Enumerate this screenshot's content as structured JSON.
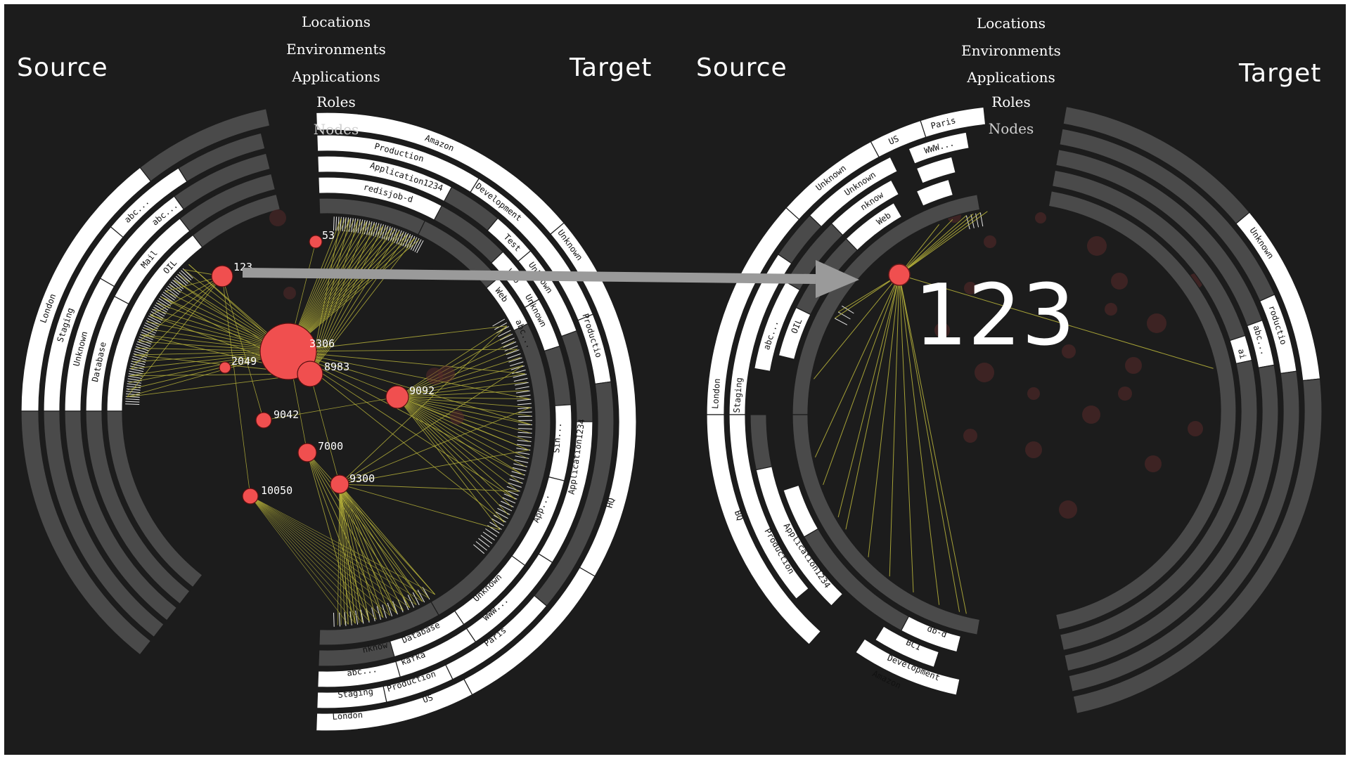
{
  "panels": [
    {
      "id": "left",
      "source_title": "Source",
      "target_title": "Target",
      "levels": [
        "Locations",
        "Environments",
        "Applications",
        "Roles",
        "Nodes"
      ],
      "source_labels": [
        {
          "text": "London",
          "ring": 0,
          "angle": -160
        },
        {
          "text": "Staging",
          "ring": 1,
          "angle": -162
        },
        {
          "text": "Unknown",
          "ring": 2,
          "angle": -166
        },
        {
          "text": "Database",
          "ring": 3,
          "angle": -168
        },
        {
          "text": "abc...",
          "ring": 2,
          "angle": -130
        },
        {
          "text": "abc...",
          "ring": 1,
          "angle": -134
        },
        {
          "text": "Mail",
          "ring": 3,
          "angle": -140
        },
        {
          "text": "OIL",
          "ring": 4,
          "angle": -138
        }
      ],
      "target_labels": [
        {
          "text": "Amazon",
          "ring": 0,
          "angle": -68
        },
        {
          "text": "Production",
          "ring": 1,
          "angle": -75
        },
        {
          "text": "Application1234",
          "ring": 2,
          "angle": -72
        },
        {
          "text": "redisjob-d",
          "ring": 3,
          "angle": -75
        },
        {
          "text": "Development",
          "ring": 1,
          "angle": -52
        },
        {
          "text": "Test",
          "ring": 2,
          "angle": -44
        },
        {
          "text": "Unknown",
          "ring": 0,
          "angle": -36
        },
        {
          "text": "Unknown",
          "ring": 2,
          "angle": -34
        },
        {
          "text": "Web",
          "ring": 3,
          "angle": -38
        },
        {
          "text": "Web",
          "ring": 4,
          "angle": -36
        },
        {
          "text": "Unknown",
          "ring": 3,
          "angle": -28
        },
        {
          "text": "abc...",
          "ring": 4,
          "angle": -24
        },
        {
          "text": "Productio",
          "ring": 1,
          "angle": -18
        },
        {
          "text": "Sin...",
          "ring": 3,
          "angle": 4
        },
        {
          "text": "Application1234",
          "ring": 2,
          "angle": 8
        },
        {
          "text": "HQ",
          "ring": 0,
          "angle": 16
        },
        {
          "text": "App...",
          "ring": 3,
          "angle": 22
        },
        {
          "text": "Unknown",
          "ring": 3,
          "angle": 46
        },
        {
          "text": "WWW...",
          "ring": 2,
          "angle": 48
        },
        {
          "text": "Paris",
          "ring": 1,
          "angle": 52
        },
        {
          "text": "Database",
          "ring": 3,
          "angle": 66
        },
        {
          "text": "kafka",
          "ring": 2,
          "angle": 70
        },
        {
          "text": "Production",
          "ring": 1,
          "angle": 72
        },
        {
          "text": "US",
          "ring": 0,
          "angle": 70
        },
        {
          "text": "nknow",
          "ring": 3,
          "angle": 78
        },
        {
          "text": "abc...",
          "ring": 2,
          "angle": 82
        },
        {
          "text": "Staging",
          "ring": 1,
          "angle": 84
        },
        {
          "text": "London",
          "ring": 0,
          "angle": 86
        }
      ],
      "ports": [
        {
          "label": "3306",
          "value": 40
        },
        {
          "label": "8983",
          "value": 18
        },
        {
          "label": "9092",
          "value": 16
        },
        {
          "label": "123",
          "value": 15
        },
        {
          "label": "7000",
          "value": 13
        },
        {
          "label": "9300",
          "value": 13
        },
        {
          "label": "9042",
          "value": 11
        },
        {
          "label": "10050",
          "value": 11
        },
        {
          "label": "53",
          "value": 9
        },
        {
          "label": "2049",
          "value": 8
        }
      ]
    },
    {
      "id": "right",
      "source_title": "Source",
      "target_title": "Target",
      "levels": [
        "Locations",
        "Environments",
        "Applications",
        "Roles",
        "Nodes"
      ],
      "source_labels": [
        {
          "text": "Paris",
          "ring": 0,
          "angle": -104
        },
        {
          "text": "US",
          "ring": 0,
          "angle": -114
        },
        {
          "text": "WWW...",
          "ring": 1,
          "angle": -106
        },
        {
          "text": "Unknown",
          "ring": 0,
          "angle": -128
        },
        {
          "text": "Unknown",
          "ring": 1,
          "angle": -124
        },
        {
          "text": "nknow",
          "ring": 2,
          "angle": -124
        },
        {
          "text": "Web",
          "ring": 3,
          "angle": -124
        },
        {
          "text": "London",
          "ring": 0,
          "angle": -176
        },
        {
          "text": "Staging",
          "ring": 1,
          "angle": -176
        },
        {
          "text": "abc...",
          "ring": 2,
          "angle": -162
        },
        {
          "text": "OIL",
          "ring": 3,
          "angle": -158
        },
        {
          "text": "BQ",
          "ring": 0,
          "angle": 160
        },
        {
          "text": "Production",
          "ring": 1,
          "angle": 150
        },
        {
          "text": "Application1234",
          "ring": 2,
          "angle": 146
        },
        {
          "text": "Amazon",
          "ring": 0,
          "angle": 116
        },
        {
          "text": "Development",
          "ring": 1,
          "angle": 112
        },
        {
          "text": "BC1",
          "ring": 2,
          "angle": 114
        },
        {
          "text": "db-d",
          "ring": 3,
          "angle": 110
        }
      ],
      "target_labels": [
        {
          "text": "Unknown",
          "ring": 0,
          "angle": -34
        },
        {
          "text": "roductio",
          "ring": 1,
          "angle": -18
        },
        {
          "text": "abc...",
          "ring": 2,
          "angle": -16
        },
        {
          "text": "ai",
          "ring": 3,
          "angle": -14
        }
      ],
      "focus_port": {
        "label": "123"
      }
    }
  ],
  "colors": {
    "background": "#1c1c1c",
    "ring_active": "#ffffff",
    "ring_inactive": "#4a4a4a",
    "link": "#b5b03a",
    "port": "#f04f4f",
    "port_ghost": "#5a2a2a",
    "arrow": "#9a9a9a"
  },
  "arrow": {
    "from_port": "123",
    "to_port": "123"
  }
}
